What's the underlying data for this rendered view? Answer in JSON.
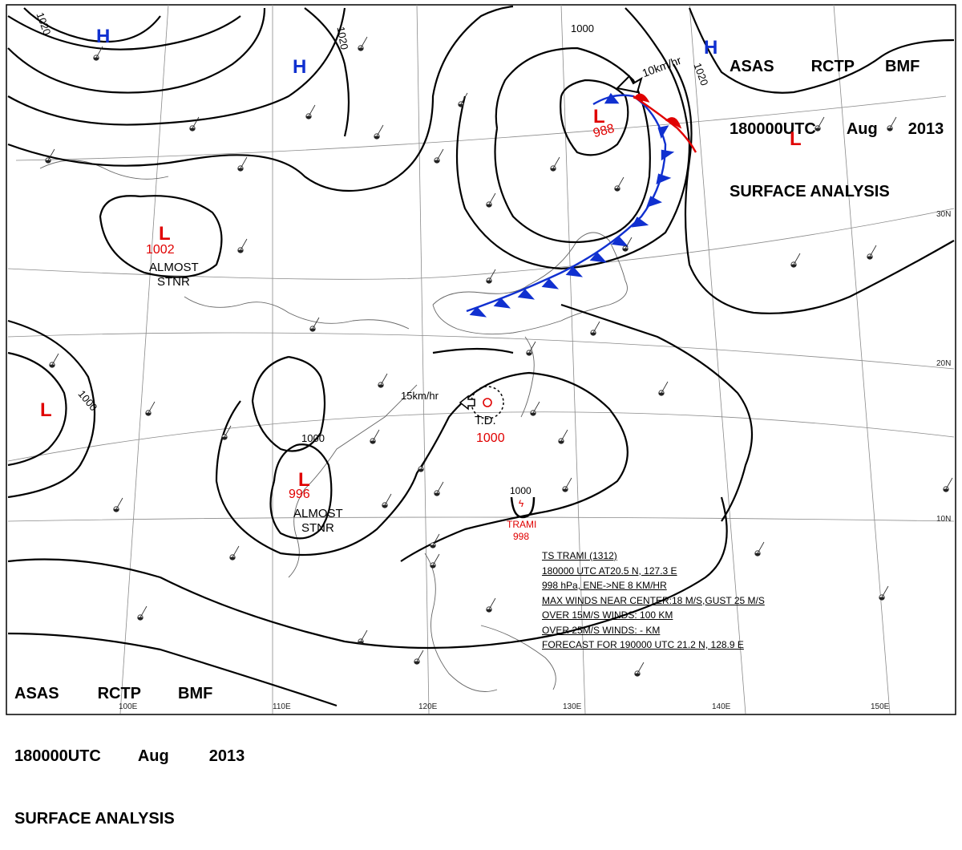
{
  "header": {
    "line1": [
      "ASAS",
      "RCTP",
      "BMF"
    ],
    "line2": [
      "180000UTC",
      "Aug",
      "2013"
    ],
    "line3": "SURFACE ANALYSIS"
  },
  "isobar_labels": [
    "1020",
    "1020",
    "1020",
    "1000",
    "1000",
    "1000",
    "1000"
  ],
  "pressure_systems": [
    {
      "type": "H",
      "label": "H"
    },
    {
      "type": "H",
      "label": "H"
    },
    {
      "type": "H",
      "label": "H"
    },
    {
      "type": "L",
      "label": "L",
      "value": "988"
    },
    {
      "type": "L",
      "label": "L",
      "value": "1002",
      "note": [
        "ALMOST",
        "STNR"
      ]
    },
    {
      "type": "L",
      "label": "L",
      "value": "996",
      "note": [
        "ALMOST",
        "STNR"
      ]
    },
    {
      "type": "L",
      "label": "L"
    },
    {
      "type": "L",
      "label": "L"
    },
    {
      "type": "TD",
      "label": "T.D.",
      "value": "1000"
    },
    {
      "type": "TS",
      "label": "TRAMI",
      "value": "998"
    }
  ],
  "motion_labels": [
    "10km/hr",
    "15km/hr"
  ],
  "latitude_labels": [
    "30N",
    "20N",
    "10N"
  ],
  "longitude_labels": [
    "100E",
    "110E",
    "120E",
    "130E",
    "140E",
    "150E"
  ],
  "storm_info": {
    "title": "TS  TRAMI  (1312)",
    "lines": [
      "180000 UTC  AT20.5 N, 127.3 E",
      "998 hPa, ENE->NE  8 KM/HR",
      "MAX WINDS NEAR CENTER:18 M/S,GUST 25 M/S",
      "OVER 15M/S WINDS: 100 KM",
      "OVER 25M/S WINDS: - KM",
      "FORECAST FOR 190000 UTC 21.2 N, 128.9 E"
    ]
  },
  "colors": {
    "high": "#1030d0",
    "low": "#e00000",
    "cold_front": "#1030d0",
    "warm_front": "#e00000",
    "isobar": "#000000",
    "grid": "#888888"
  }
}
